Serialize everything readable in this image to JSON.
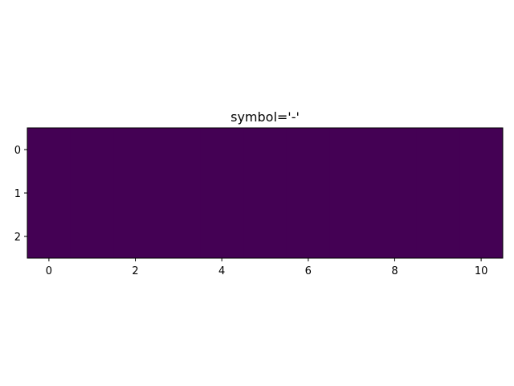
{
  "chart_data": {
    "type": "heatmap",
    "title": "symbol='-'",
    "xlabel": "",
    "ylabel": "",
    "rows": 3,
    "cols": 11,
    "values": [
      [
        0,
        0,
        0,
        0,
        0,
        0,
        0,
        0,
        0,
        0,
        0
      ],
      [
        0,
        0,
        0,
        0,
        0,
        0,
        0,
        0,
        0,
        0,
        0
      ],
      [
        0,
        0,
        0,
        0,
        0,
        0,
        0,
        0,
        0,
        0,
        0
      ]
    ],
    "colormap": "viridis",
    "cell_color": "#440154",
    "xlim": [
      -0.5,
      10.5
    ],
    "ylim": [
      2.5,
      -0.5
    ],
    "x_ticks": [
      0,
      2,
      4,
      6,
      8,
      10
    ],
    "x_tick_labels": [
      "0",
      "2",
      "4",
      "6",
      "8",
      "10"
    ],
    "y_ticks": [
      0,
      1,
      2
    ],
    "y_tick_labels": [
      "0",
      "1",
      "2"
    ],
    "grid": false
  }
}
